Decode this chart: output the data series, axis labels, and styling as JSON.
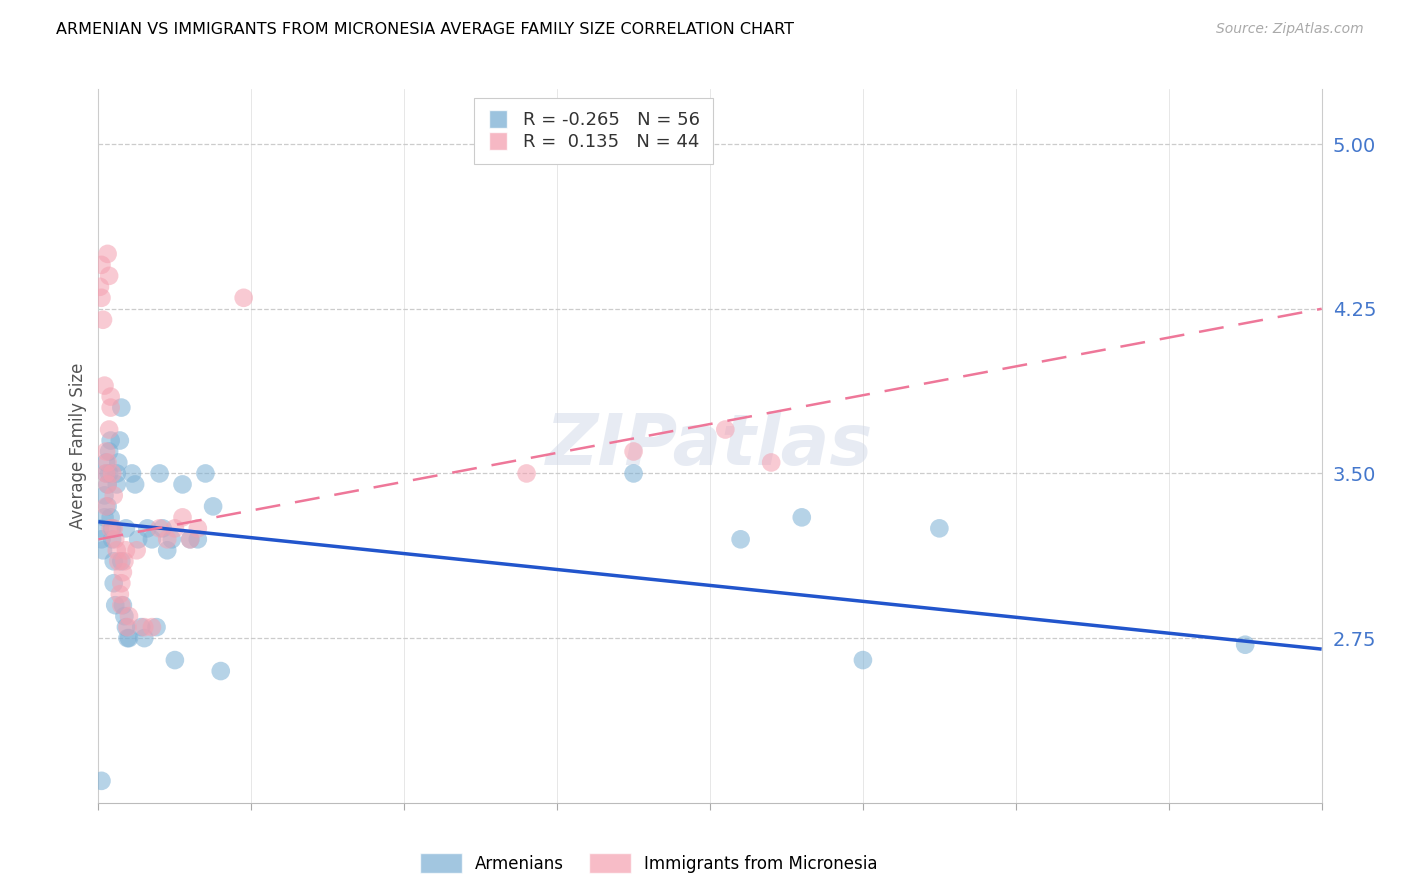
{
  "title": "ARMENIAN VS IMMIGRANTS FROM MICRONESIA AVERAGE FAMILY SIZE CORRELATION CHART",
  "source": "Source: ZipAtlas.com",
  "ylabel": "Average Family Size",
  "yticks": [
    2.75,
    3.5,
    4.25,
    5.0
  ],
  "xlim": [
    0.0,
    0.8
  ],
  "ylim": [
    2.0,
    5.25
  ],
  "legend1_label": "Armenians",
  "legend2_label": "Immigrants from Micronesia",
  "r1": -0.265,
  "n1": 56,
  "r2": 0.135,
  "n2": 44,
  "color_blue": "#7BAFD4",
  "color_pink": "#F4A0B0",
  "color_blue_line": "#2255CC",
  "color_pink_line": "#EE7799",
  "color_axis_labels": "#4477CC",
  "watermark": "ZIPatlas",
  "blue_trend_x0": 0.0,
  "blue_trend_y0": 3.28,
  "blue_trend_x1": 0.8,
  "blue_trend_y1": 2.7,
  "pink_trend_x0": 0.0,
  "pink_trend_y0": 3.2,
  "pink_trend_x1": 0.8,
  "pink_trend_y1": 4.25,
  "blue_x": [
    0.001,
    0.002,
    0.003,
    0.004,
    0.004,
    0.005,
    0.005,
    0.006,
    0.006,
    0.007,
    0.007,
    0.008,
    0.008,
    0.009,
    0.009,
    0.01,
    0.01,
    0.011,
    0.012,
    0.012,
    0.013,
    0.014,
    0.015,
    0.015,
    0.016,
    0.017,
    0.018,
    0.018,
    0.019,
    0.02,
    0.022,
    0.024,
    0.026,
    0.028,
    0.03,
    0.032,
    0.035,
    0.038,
    0.04,
    0.042,
    0.045,
    0.048,
    0.05,
    0.055,
    0.06,
    0.065,
    0.07,
    0.075,
    0.08,
    0.35,
    0.42,
    0.46,
    0.5,
    0.55,
    0.75,
    0.002
  ],
  "blue_y": [
    3.25,
    3.2,
    3.15,
    3.3,
    3.4,
    3.5,
    3.55,
    3.45,
    3.35,
    3.6,
    3.5,
    3.65,
    3.3,
    3.25,
    3.2,
    3.1,
    3.0,
    2.9,
    3.45,
    3.5,
    3.55,
    3.65,
    3.8,
    3.1,
    2.9,
    2.85,
    2.8,
    3.25,
    2.75,
    2.75,
    3.5,
    3.45,
    3.2,
    2.8,
    2.75,
    3.25,
    3.2,
    2.8,
    3.5,
    3.25,
    3.15,
    3.2,
    2.65,
    3.45,
    3.2,
    3.2,
    3.5,
    3.35,
    2.6,
    3.5,
    3.2,
    3.3,
    2.65,
    3.25,
    2.72,
    2.1
  ],
  "pink_x": [
    0.001,
    0.002,
    0.002,
    0.003,
    0.004,
    0.005,
    0.005,
    0.006,
    0.006,
    0.007,
    0.008,
    0.008,
    0.009,
    0.01,
    0.01,
    0.011,
    0.012,
    0.013,
    0.014,
    0.015,
    0.015,
    0.016,
    0.017,
    0.018,
    0.019,
    0.02,
    0.025,
    0.03,
    0.035,
    0.04,
    0.045,
    0.05,
    0.055,
    0.06,
    0.065,
    0.095,
    0.28,
    0.35,
    0.41,
    0.44,
    0.005,
    0.006,
    0.007,
    0.008
  ],
  "pink_y": [
    4.35,
    4.3,
    4.45,
    4.2,
    3.9,
    3.6,
    3.5,
    3.45,
    3.55,
    3.7,
    3.8,
    3.25,
    3.5,
    3.4,
    3.25,
    3.2,
    3.15,
    3.1,
    2.95,
    2.9,
    3.0,
    3.05,
    3.1,
    3.15,
    2.8,
    2.85,
    3.15,
    2.8,
    2.8,
    3.25,
    3.2,
    3.25,
    3.3,
    3.2,
    3.25,
    4.3,
    3.5,
    3.6,
    3.7,
    3.55,
    3.35,
    4.5,
    4.4,
    3.85
  ]
}
